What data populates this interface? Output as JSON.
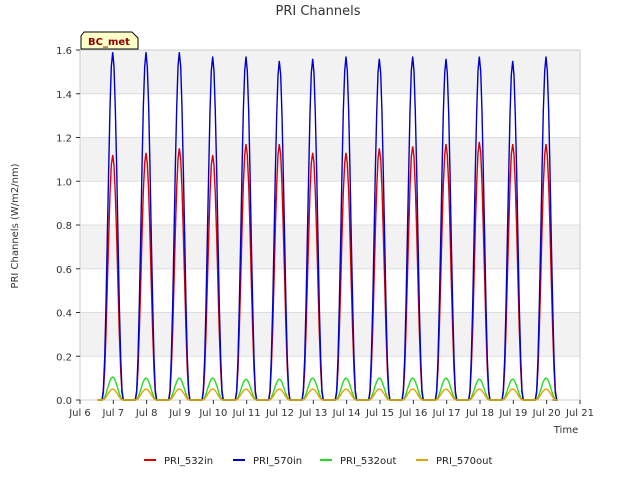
{
  "chart_data": {
    "type": "line",
    "title": "PRI Channels",
    "xlabel": "Time",
    "ylabel": "PRI Channels (W/m2/nm)",
    "badge": "BC_met",
    "xlim": [
      6,
      21
    ],
    "ylim": [
      0,
      1.6
    ],
    "x_ticks": [
      6,
      7,
      8,
      9,
      10,
      11,
      12,
      13,
      14,
      15,
      16,
      17,
      18,
      19,
      20,
      21
    ],
    "x_tick_labels": [
      "Jul 6",
      "Jul 7",
      "Jul 8",
      "Jul 9",
      "Jul 10",
      "Jul 11",
      "Jul 12",
      "Jul 13",
      "Jul 14",
      "Jul 15",
      "Jul 16",
      "Jul 17",
      "Jul 18",
      "Jul 19",
      "Jul 20",
      "Jul 21"
    ],
    "y_ticks": [
      0.0,
      0.2,
      0.4,
      0.6,
      0.8,
      1.0,
      1.2,
      1.4,
      1.6
    ],
    "y_tick_labels": [
      "0.0",
      "0.2",
      "0.4",
      "0.6",
      "0.8",
      "1.0",
      "1.2",
      "1.4",
      "1.6"
    ],
    "grid": true,
    "legend_position": "bottom",
    "day_peak_times": [
      6.98,
      7.98,
      8.98,
      9.98,
      10.98,
      11.98,
      12.98,
      13.98,
      14.98,
      15.98,
      16.98,
      17.98,
      18.98,
      19.98
    ],
    "series": [
      {
        "name": "PRI_532in",
        "color": "#dd0000",
        "daily_peaks": [
          1.12,
          1.13,
          1.15,
          1.12,
          1.17,
          1.17,
          1.13,
          1.13,
          1.15,
          1.16,
          1.17,
          1.18,
          1.17,
          1.17
        ]
      },
      {
        "name": "PRI_570in",
        "color": "#0000cc",
        "daily_peaks": [
          1.59,
          1.59,
          1.59,
          1.57,
          1.57,
          1.55,
          1.56,
          1.57,
          1.56,
          1.57,
          1.56,
          1.57,
          1.55,
          1.57
        ]
      },
      {
        "name": "PRI_532out",
        "color": "#22dd22",
        "daily_peaks": [
          0.105,
          0.1,
          0.1,
          0.1,
          0.095,
          0.095,
          0.1,
          0.1,
          0.1,
          0.1,
          0.1,
          0.095,
          0.095,
          0.1
        ]
      },
      {
        "name": "PRI_570out",
        "color": "#e8a000",
        "daily_peaks": [
          0.05,
          0.05,
          0.05,
          0.05,
          0.05,
          0.05,
          0.05,
          0.05,
          0.05,
          0.05,
          0.05,
          0.05,
          0.05,
          0.05
        ]
      }
    ]
  }
}
